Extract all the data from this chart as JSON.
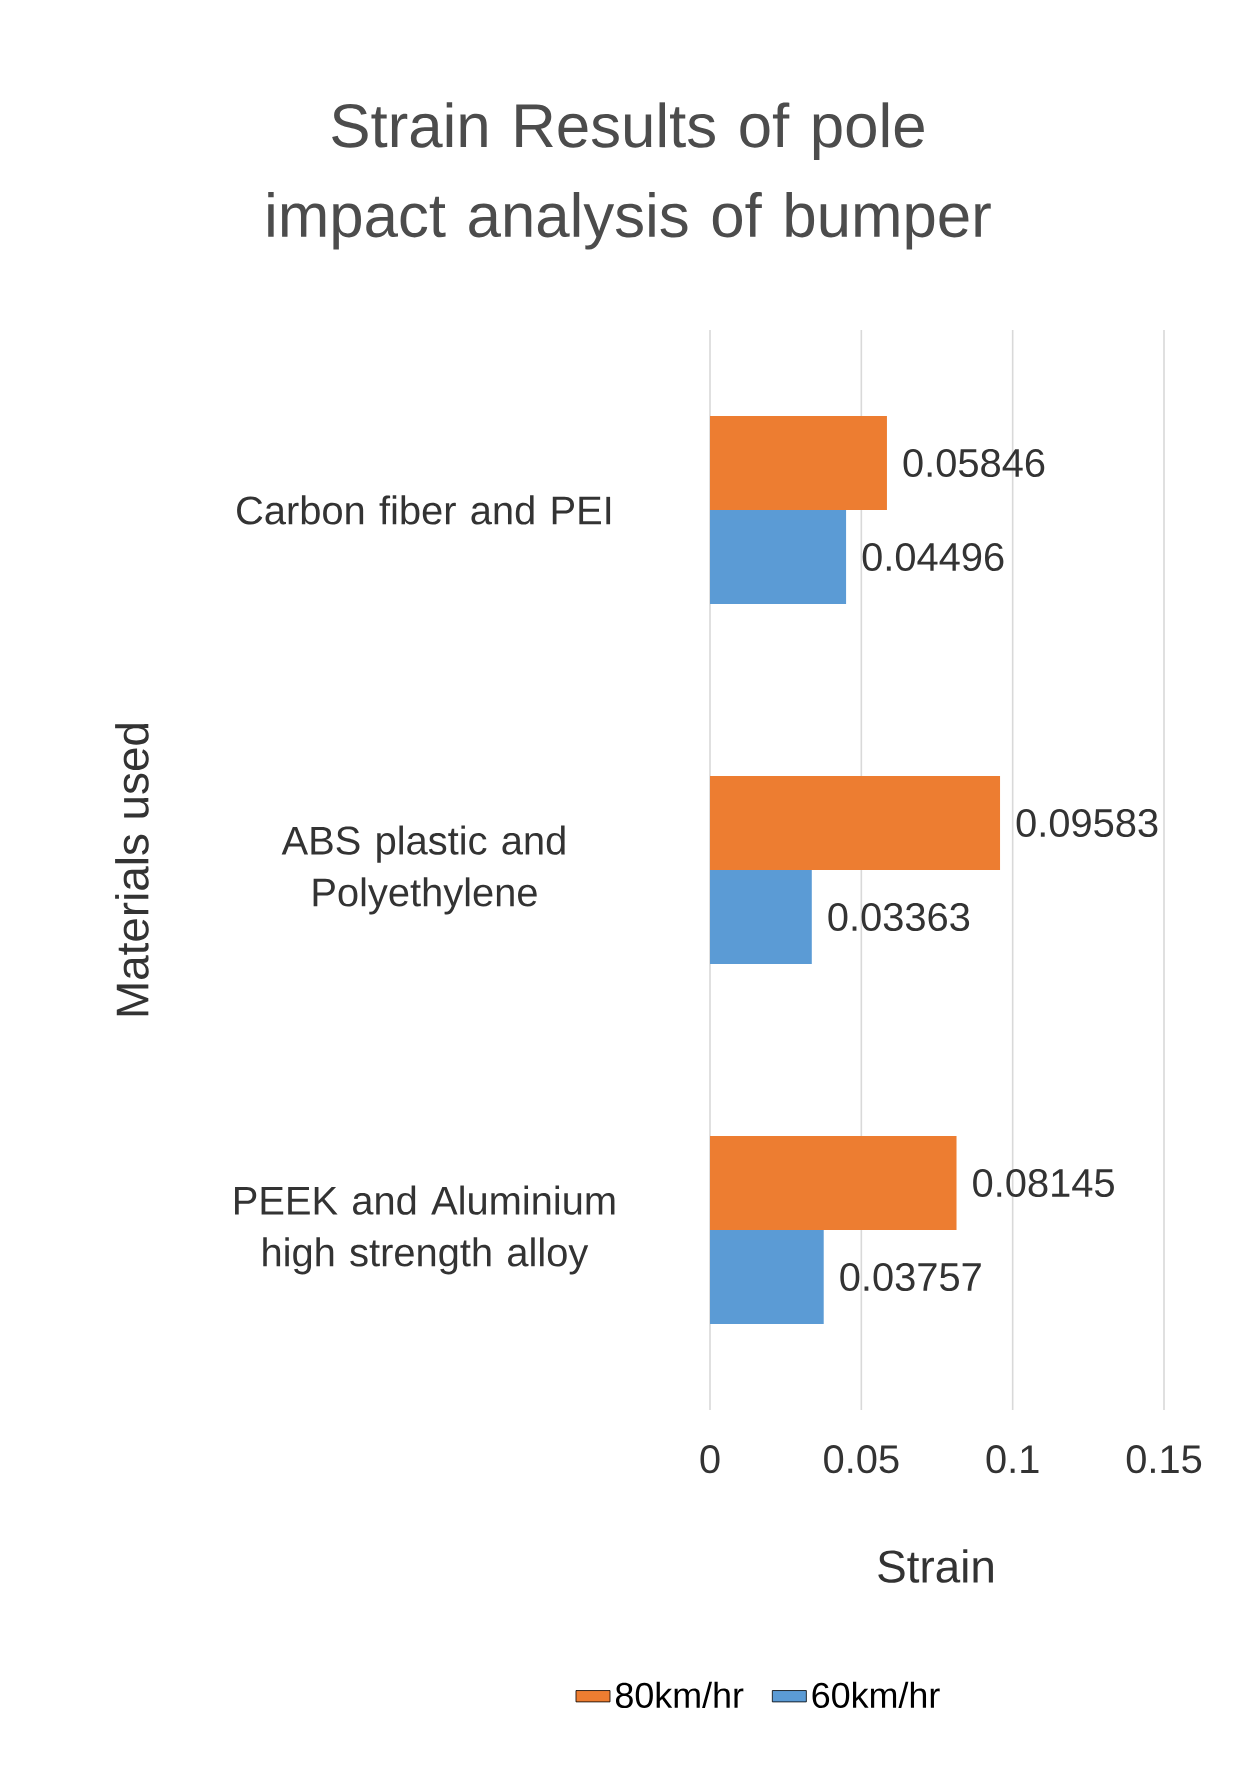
{
  "chart_data": {
    "type": "bar",
    "orientation": "horizontal",
    "title": "Strain Results of pole impact analysis of bumper",
    "xlabel": "Strain",
    "ylabel": "Materials used",
    "categories": [
      "Carbon fiber and PEI",
      "ABS plastic and Polyethylene",
      "PEEK and Aluminium high strength alloy"
    ],
    "series": [
      {
        "name": "80km/hr",
        "color": "#ed7d31",
        "values": [
          0.05846,
          0.09583,
          0.08145
        ]
      },
      {
        "name": "60km/hr",
        "color": "#5b9bd5",
        "values": [
          0.04496,
          0.03363,
          0.03757
        ]
      }
    ],
    "xlim": [
      0,
      0.15
    ],
    "xticks": [
      0,
      0.05,
      0.1,
      0.15
    ],
    "grid": "x",
    "legend": "bottom",
    "data_labels": true
  }
}
